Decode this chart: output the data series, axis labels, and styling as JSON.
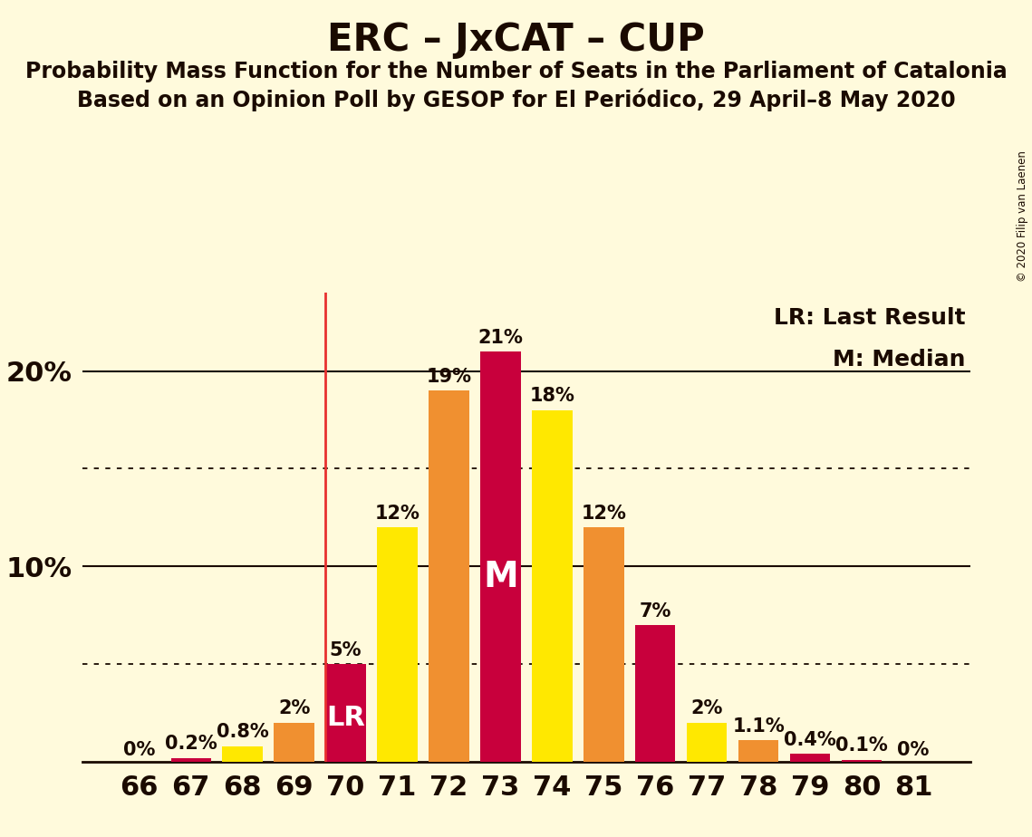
{
  "title": "ERC – JxCAT – CUP",
  "subtitle1": "Probability Mass Function for the Number of Seats in the Parliament of Catalonia",
  "subtitle2": "Based on an Opinion Poll by GESOP for El Periódico, 29 April–8 May 2020",
  "copyright": "© 2020 Filip van Laenen",
  "legend_lr": "LR: Last Result",
  "legend_m": "M: Median",
  "seats": [
    66,
    67,
    68,
    69,
    70,
    71,
    72,
    73,
    74,
    75,
    76,
    77,
    78,
    79,
    80,
    81
  ],
  "values": [
    0.0,
    0.2,
    0.8,
    2.0,
    5.0,
    12.0,
    19.0,
    21.0,
    18.0,
    12.0,
    7.0,
    2.0,
    1.1,
    0.4,
    0.1,
    0.0
  ],
  "labels": [
    "0%",
    "0.2%",
    "0.8%",
    "2%",
    "5%",
    "12%",
    "19%",
    "21%",
    "18%",
    "12%",
    "7%",
    "2%",
    "1.1%",
    "0.4%",
    "0.1%",
    "0%"
  ],
  "bar_colors": [
    "#C8003C",
    "#C8003C",
    "#FFE800",
    "#F09030",
    "#C8003C",
    "#FFE800",
    "#F09030",
    "#C8003C",
    "#FFE800",
    "#F09030",
    "#C8003C",
    "#FFE800",
    "#F09030",
    "#C8003C",
    "#C8003C",
    "#C8003C"
  ],
  "last_result_seat": 70,
  "median_seat": 73,
  "lr_label": "LR",
  "m_label": "M",
  "background_color": "#FFFADC",
  "axis_color": "#1A0A00",
  "grid_color": "#1A0A00",
  "dotted_line_levels": [
    5.0,
    15.0
  ],
  "solid_line_levels": [
    10.0,
    20.0
  ],
  "ylim": [
    0,
    24
  ],
  "lr_line_color": "#E83030",
  "title_fontsize": 30,
  "subtitle_fontsize": 17,
  "label_fontsize": 15,
  "tick_fontsize": 22,
  "legend_fontsize": 18,
  "lr_m_label_fontsize": 22,
  "bar_width": 0.78
}
